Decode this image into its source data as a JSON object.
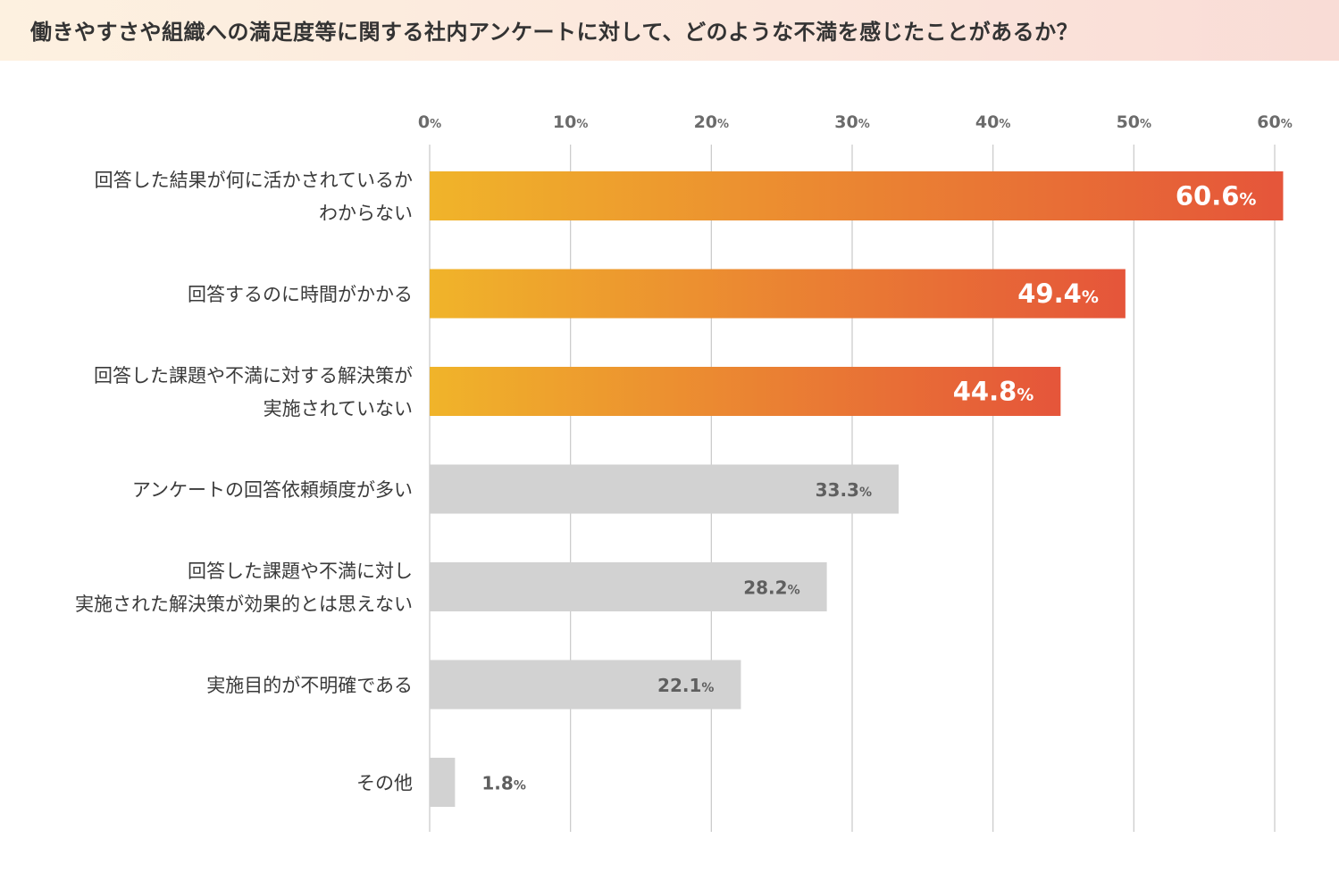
{
  "title": "働きやすさや組織への満足度等に関する社内アンケートに対して、どのような不満を感じたことがあるか？",
  "colors": {
    "highlight_start": "#f0b42a",
    "highlight_end": "#e5553a",
    "muted": "#d2d2d2",
    "gridline": "#c8c8c8"
  },
  "chart_data": {
    "type": "bar",
    "orientation": "horizontal",
    "title": "働きやすさや組織への満足度等に関する社内アンケートに対して、どのような不満を感じたことがあるか？",
    "xlim": [
      0,
      60
    ],
    "ticks": [
      0,
      10,
      20,
      30,
      40,
      50,
      60
    ],
    "tick_suffix": "%",
    "value_suffix": "%",
    "categories": [
      [
        "回答した結果が何に活かされているか",
        "わからない"
      ],
      [
        "回答するのに時間がかかる"
      ],
      [
        "回答した課題や不満に対する解決策が",
        "実施されていない"
      ],
      [
        "アンケートの回答依頼頻度が多い"
      ],
      [
        "回答した課題や不満に対し",
        "実施された解決策が効果的とは思えない"
      ],
      [
        "実施目的が不明確である"
      ],
      [
        "その他"
      ]
    ],
    "values": [
      60.6,
      49.4,
      44.8,
      33.3,
      28.2,
      22.1,
      1.8
    ],
    "value_labels": [
      "60.6",
      "49.4",
      "44.8",
      "33.3",
      "28.2",
      "22.1",
      "1.8"
    ],
    "highlighted": [
      true,
      true,
      true,
      false,
      false,
      false,
      false
    ]
  }
}
